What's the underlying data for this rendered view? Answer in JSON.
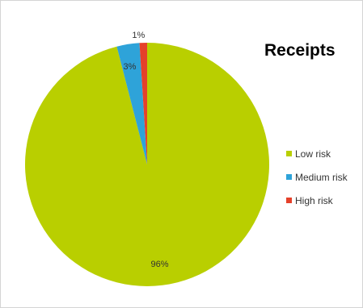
{
  "chart_data": {
    "type": "pie",
    "title": "Receipts",
    "categories": [
      "Low risk",
      "Medium risk",
      "High risk"
    ],
    "values": [
      96,
      3,
      1
    ],
    "labels": [
      "96%",
      "3%",
      "1%"
    ],
    "colors": [
      "#b9cf00",
      "#2ea3d9",
      "#e5412a"
    ],
    "legend_position": "right"
  }
}
